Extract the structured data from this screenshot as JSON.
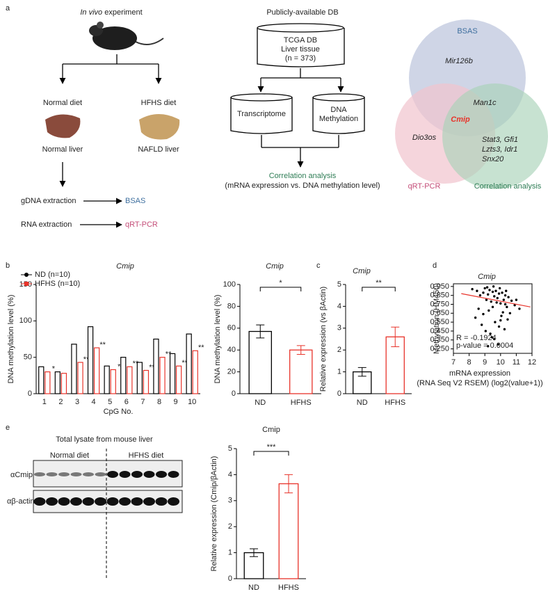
{
  "panel_labels": [
    "a",
    "b",
    "c",
    "d",
    "e"
  ],
  "in_vivo": {
    "title_italic": "In vivo",
    "title_rest": "experiment",
    "branches": [
      "Normal diet",
      "HFHS diet"
    ],
    "livers": [
      "Normal liver",
      "NAFLD liver"
    ],
    "steps": [
      {
        "label": "gDNA extraction",
        "target": "BSAS"
      },
      {
        "label": "RNA extraction",
        "target": "qRT-PCR"
      }
    ]
  },
  "db": {
    "title": "Publicly-available DB",
    "source": [
      "TCGA DB",
      "Liver tissue",
      "(n = 373)"
    ],
    "data_types": [
      [
        "Transcriptome"
      ],
      [
        "DNA",
        "Methylation"
      ]
    ],
    "result": "Correlation analysis",
    "result_note": "(mRNA expression vs. DNA methylation level)"
  },
  "venn": {
    "sets": [
      "BSAS",
      "qRT-PCR",
      "Correlation analysis"
    ],
    "bsas_only": "Mir126b",
    "bsas_corr": "Man1c",
    "all": "Cmip",
    "qpcr_only": "Dio3os",
    "corr_only": [
      "Stat3, Gfi1",
      "Lzts3, Idr1",
      "Snx20"
    ]
  },
  "blot": {
    "title": "Total lysate from mouse liver",
    "groups": [
      "Normal diet",
      "HFHS diet"
    ],
    "rows": [
      "αCmip",
      "αβ-actin"
    ]
  },
  "chart_data": [
    {
      "type": "grouped_bar",
      "title": "Cmip",
      "x_label": "CpG No.",
      "y_label": "DNA methylation level  (%)",
      "categories": [
        "1",
        "2",
        "3",
        "4",
        "5",
        "6",
        "7",
        "8",
        "9",
        "10"
      ],
      "series": [
        {
          "name": "ND (n=10)",
          "color": "#000000",
          "values": [
            37,
            30,
            68,
            92,
            38,
            50,
            43,
            75,
            55,
            82
          ]
        },
        {
          "name": "HFHS (n=10)",
          "color": "#e8332a",
          "values": [
            30,
            28,
            43,
            63,
            33,
            37,
            32,
            50,
            38,
            59
          ],
          "significance": [
            "*",
            null,
            "**",
            "**",
            "*",
            "**",
            "**",
            "**",
            "**",
            "**"
          ]
        }
      ],
      "ylim": [
        0,
        150
      ],
      "yticks": [
        0,
        50,
        100,
        150
      ]
    },
    {
      "type": "bar",
      "title": "Cmip",
      "y_label": "DNA methylation level  (%)",
      "categories": [
        "ND",
        "HFHS"
      ],
      "values": [
        57,
        40
      ],
      "errors": [
        6,
        4
      ],
      "colors": [
        "#000000",
        "#e8332a"
      ],
      "annotation": "*",
      "ylim": [
        0,
        100
      ],
      "yticks": [
        0,
        20,
        40,
        60,
        80,
        100
      ]
    },
    {
      "type": "bar",
      "title": "Cmip",
      "y_label": "Relative expression (vs βActin)",
      "categories": [
        "ND",
        "HFHS"
      ],
      "values": [
        1.0,
        2.6
      ],
      "errors": [
        0.2,
        0.45
      ],
      "colors": [
        "#000000",
        "#e8332a"
      ],
      "annotation": "**",
      "ylim": [
        0,
        5
      ],
      "yticks": [
        0,
        1,
        2,
        3,
        4,
        5
      ]
    },
    {
      "type": "scatter",
      "title": "Cmip",
      "y_label": "Methylation (HM450)",
      "x_label": [
        "mRNA expression",
        "(RNA Seq V2 RSEM)   (log2(value+1))"
      ],
      "annotations": [
        "R = -0.1924",
        "p-value = 0.0004"
      ],
      "x": [
        8.2,
        8.5,
        8.7,
        8.9,
        9.0,
        9.1,
        9.2,
        9.3,
        9.4,
        9.5,
        9.6,
        9.7,
        9.8,
        9.9,
        10.0,
        10.1,
        10.2,
        10.3,
        10.4,
        10.5,
        10.7,
        10.9,
        11.2,
        8.4,
        8.8,
        9.05,
        9.25,
        9.45,
        9.65,
        9.85,
        10.05,
        10.25,
        10.45,
        9.15,
        9.55,
        9.75,
        9.95,
        10.15,
        10.35,
        8.6,
        9.35,
        9.9,
        10.6,
        11.0,
        9.2,
        9.6,
        10.0,
        10.3,
        8.9,
        9.5
      ],
      "y": [
        0.92,
        0.9,
        0.85,
        0.88,
        0.93,
        0.8,
        0.86,
        0.91,
        0.78,
        0.89,
        0.84,
        0.9,
        0.82,
        0.87,
        0.76,
        0.88,
        0.8,
        0.85,
        0.72,
        0.83,
        0.79,
        0.74,
        0.7,
        0.6,
        0.52,
        0.45,
        0.68,
        0.38,
        0.55,
        0.3,
        0.62,
        0.47,
        0.58,
        0.94,
        0.95,
        0.77,
        0.93,
        0.66,
        0.9,
        0.7,
        0.42,
        0.5,
        0.65,
        0.8,
        0.28,
        0.36,
        0.57,
        0.75,
        0.64,
        0.72
      ],
      "color": "#000000",
      "trend_line": {
        "x": [
          7.5,
          11.9
        ],
        "y": [
          0.87,
          0.72
        ],
        "color": "#e8332a"
      },
      "xlim": [
        7,
        12
      ],
      "xticks": [
        7,
        8,
        9,
        10,
        11,
        12
      ],
      "ylim": [
        0.2,
        0.98
      ],
      "yticks": [
        {
          "value": 0.25,
          "label": "0.250"
        },
        {
          "value": 0.35,
          "label": "0.350"
        },
        {
          "value": 0.45,
          "label": "0.450"
        },
        {
          "value": 0.55,
          "label": "0.550"
        },
        {
          "value": 0.65,
          "label": "0.650"
        },
        {
          "value": 0.75,
          "label": "0.750"
        },
        {
          "value": 0.85,
          "label": "0.850"
        },
        {
          "value": 0.95,
          "label": "0.950"
        }
      ]
    },
    {
      "type": "bar",
      "title": "Cmip",
      "y_label": "Relative expression (Cmip/βActin)",
      "categories": [
        "ND",
        "HFHS"
      ],
      "values": [
        1.0,
        3.65
      ],
      "errors": [
        0.15,
        0.35
      ],
      "colors": [
        "#000000",
        "#e8332a"
      ],
      "annotation": "***",
      "ylim": [
        0,
        5
      ],
      "yticks": [
        0,
        1,
        2,
        3,
        4,
        5
      ]
    }
  ]
}
